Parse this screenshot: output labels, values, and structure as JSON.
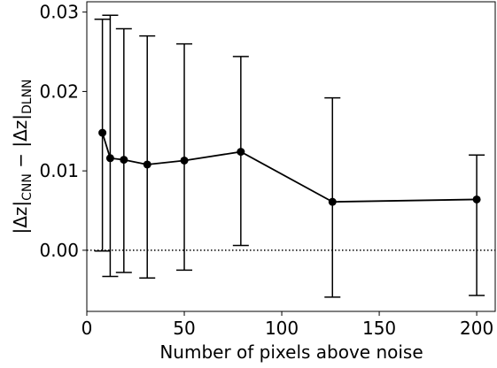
{
  "chart_data": {
    "type": "errorbar-line",
    "xlabel": "Number of pixels above noise",
    "ylabel_parts": [
      "|Δz|",
      "CNN",
      " − |Δz|",
      "DLNN"
    ],
    "x": [
      8,
      12,
      19,
      31,
      50,
      79,
      126,
      200
    ],
    "series": [
      {
        "color": "#000000",
        "values": [
          0.0148,
          0.0116,
          0.0114,
          0.0108,
          0.0113,
          0.0124,
          0.0061,
          0.0064
        ],
        "error_minus": [
          0.0149,
          0.0149,
          0.0142,
          0.0143,
          0.0138,
          0.0118,
          0.012,
          0.0121
        ],
        "error_plus": [
          0.0143,
          0.018,
          0.0165,
          0.0162,
          0.0147,
          0.012,
          0.0131,
          0.0056
        ]
      }
    ],
    "xlim": [
      0,
      209.5
    ],
    "ylim": [
      -0.0077,
      0.0313
    ],
    "xticks": [
      0,
      50,
      100,
      150,
      200
    ],
    "yticks": [
      {
        "value": 0,
        "label": "0.00"
      },
      0.01,
      0.02,
      0.03
    ],
    "hline": {
      "y": 0,
      "style": "dotted"
    },
    "grid": false
  }
}
